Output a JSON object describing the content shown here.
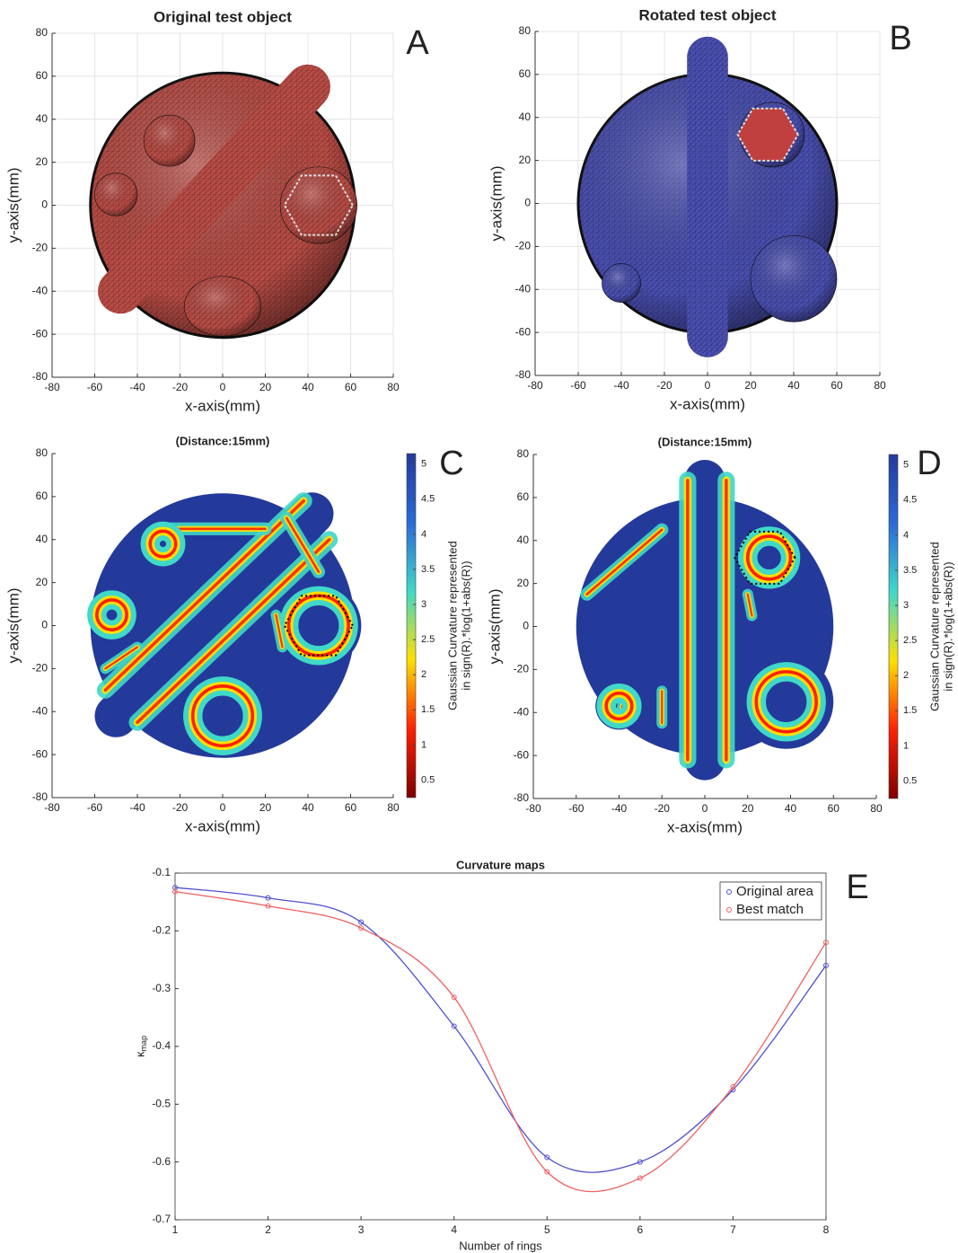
{
  "chart_data": [
    {
      "type": "image",
      "panel": "A",
      "title": "Original test object",
      "xlabel": "x-axis(mm)",
      "ylabel": "y-axis(mm)",
      "xlim": [
        -80,
        80
      ],
      "ylim": [
        -80,
        80
      ],
      "xticks": [
        -80,
        -60,
        -40,
        -20,
        0,
        20,
        40,
        60,
        80
      ],
      "yticks": [
        -80,
        -60,
        -40,
        -20,
        0,
        20,
        40,
        60,
        80
      ],
      "grid": true,
      "color": "#b84c45"
    },
    {
      "type": "image",
      "panel": "B",
      "title": "Rotated test object",
      "xlabel": "x-axis(mm)",
      "ylabel": "y-axis(mm)",
      "xlim": [
        -80,
        80
      ],
      "ylim": [
        -80,
        80
      ],
      "xticks": [
        -80,
        -60,
        -40,
        -20,
        0,
        20,
        40,
        60,
        80
      ],
      "yticks": [
        -80,
        -60,
        -40,
        -20,
        0,
        20,
        40,
        60,
        80
      ],
      "grid": true,
      "color": "#4a4fb0"
    },
    {
      "type": "heatmap",
      "panel": "C",
      "title": "(Distance:15mm)",
      "xlabel": "x-axis(mm)",
      "ylabel": "y-axis(mm)",
      "xlim": [
        -80,
        80
      ],
      "ylim": [
        -80,
        80
      ],
      "xticks": [
        -80,
        -60,
        -40,
        -20,
        0,
        20,
        40,
        60,
        80
      ],
      "yticks": [
        -80,
        -60,
        -40,
        -20,
        0,
        20,
        40,
        60,
        80
      ],
      "grid": false,
      "colorbar_label": [
        "Gaussian Curvature represented",
        "in sign(R).*log(1+abs(R))"
      ],
      "colorbar_lim": [
        0.25,
        5.15
      ],
      "colorbar_ticks": [
        0.5,
        1,
        1.5,
        2,
        2.5,
        3,
        3.5,
        4,
        4.5,
        5
      ],
      "colormap": [
        "#7f0000",
        "#ff2000",
        "#ffe000",
        "#40d8c8",
        "#2a6ad8",
        "#243a9a"
      ]
    },
    {
      "type": "heatmap",
      "panel": "D",
      "title": "(Distance:15mm)",
      "xlabel": "x-axis(mm)",
      "ylabel": "y-axis(mm)",
      "xlim": [
        -80,
        80
      ],
      "ylim": [
        -80,
        80
      ],
      "xticks": [
        -80,
        -60,
        -40,
        -20,
        0,
        20,
        40,
        60,
        80
      ],
      "yticks": [
        -80,
        -60,
        -40,
        -20,
        0,
        20,
        40,
        60,
        80
      ],
      "grid": false,
      "colorbar_label": [
        "Gaussian Curvature represented",
        "in sign(R).*log(1+abs(R))"
      ],
      "colorbar_lim": [
        0.25,
        5.15
      ],
      "colorbar_ticks": [
        0.5,
        1,
        1.5,
        2,
        2.5,
        3,
        3.5,
        4,
        4.5,
        5
      ],
      "colormap": [
        "#7f0000",
        "#ff2000",
        "#ffe000",
        "#40d8c8",
        "#2a6ad8",
        "#243a9a"
      ]
    },
    {
      "type": "line",
      "panel": "E",
      "title": "Curvature maps",
      "xlabel": "Number of rings",
      "ylabel": "κ",
      "ylabel_sub": "map",
      "x": [
        1,
        2,
        3,
        4,
        5,
        6,
        7,
        8
      ],
      "xlim": [
        1,
        8
      ],
      "ylim": [
        -0.7,
        -0.1
      ],
      "xticks": [
        1,
        2,
        3,
        4,
        5,
        6,
        7,
        8
      ],
      "yticks": [
        -0.1,
        -0.2,
        -0.3,
        -0.4,
        -0.5,
        -0.6,
        -0.7
      ],
      "grid": false,
      "legend": "upper right",
      "series": [
        {
          "name": "Original area",
          "color": "#5050d0",
          "values": [
            -0.125,
            -0.143,
            -0.185,
            -0.365,
            -0.592,
            -0.6,
            -0.475,
            -0.26
          ]
        },
        {
          "name": "Best match",
          "color": "#ee6060",
          "values": [
            -0.132,
            -0.157,
            -0.195,
            -0.315,
            -0.617,
            -0.628,
            -0.47,
            -0.22
          ]
        }
      ]
    }
  ]
}
